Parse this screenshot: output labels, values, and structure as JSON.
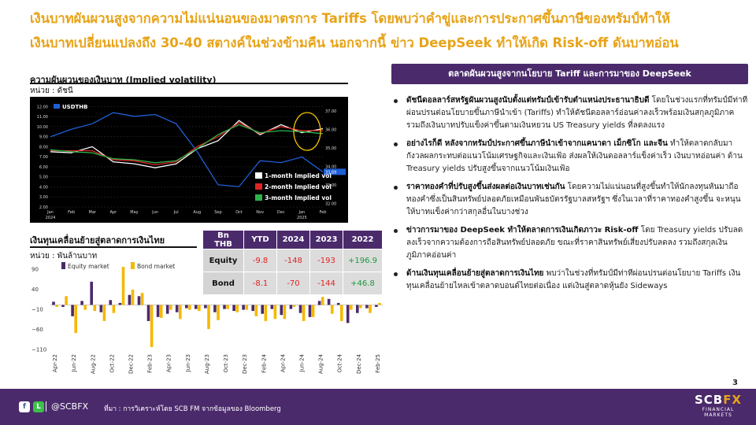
{
  "headline": {
    "line1": "เงินบาทผันผวนสูงจากความไม่แน่นอนของมาตรการ Tariffs โดยพบว่าคำขู่และการประกาศขึ้นภาษีของทรัมป์ทำให้",
    "line2": "เงินบาทเปลี่ยนแปลงถึง 30-40 สตางค์ในช่วงข้ามคืน นอกจากนี้ ข่าว DeepSeek ทำให้เกิด Risk-off ดันบาทอ่อน"
  },
  "vol_section": {
    "title": "ความผันผวนของเงินบาท (Implied volatility)",
    "unit": "หน่วย : ดัชนี"
  },
  "fx_section": {
    "title": "เงินทุนเคลื่อนย้ายสู่ตลาดการเงินไทย",
    "unit": "หน่วย : พันล้านบาท"
  },
  "chart_data": [
    {
      "type": "line",
      "title": "",
      "x": [
        "Jan 2024",
        "Feb",
        "Mar",
        "Apr",
        "May",
        "Jun",
        "Jul",
        "Aug",
        "Sep",
        "Oct",
        "Nov",
        "Dec",
        "Jan 2025",
        "Feb"
      ],
      "x_tick_labels": [
        "Jan",
        "Feb",
        "Mar",
        "Apr",
        "May",
        "Jun",
        "Jul",
        "Aug",
        "Sep",
        "Oct",
        "Nov",
        "Dec",
        "Jan",
        "Feb"
      ],
      "x_year_labels": [
        "2024",
        "2025"
      ],
      "left_axis": {
        "ticks": [
          "2.00",
          "3.00",
          "4.00",
          "5.00",
          "6.00",
          "7.00",
          "8.00",
          "9.00",
          "10.00",
          "11.00",
          "12.00"
        ],
        "ylim": [
          2,
          12.5
        ]
      },
      "right_axis": {
        "ticks": [
          "32.00",
          "33.00",
          "34.00",
          "35.00",
          "36.00",
          "37.00"
        ],
        "ylim": [
          31.8,
          37.5
        ]
      },
      "series": [
        {
          "name": "USDTHB",
          "axis": "right",
          "color": "#1f5fd6",
          "values": [
            35.6,
            36.0,
            36.3,
            36.9,
            36.7,
            36.8,
            36.3,
            34.8,
            33.0,
            32.9,
            34.3,
            34.2,
            34.5,
            33.7
          ]
        },
        {
          "name": "1-month Implied vol",
          "axis": "left",
          "color": "#ffffff",
          "values": [
            7.5,
            7.4,
            8.0,
            6.5,
            6.3,
            5.9,
            6.3,
            7.8,
            8.6,
            10.6,
            9.2,
            10.2,
            9.4,
            9.8
          ]
        },
        {
          "name": "2-month Implied vol",
          "axis": "left",
          "color": "#e02424",
          "values": [
            7.6,
            7.6,
            7.6,
            6.7,
            6.6,
            6.2,
            6.5,
            8.0,
            9.0,
            10.4,
            9.3,
            10.0,
            9.6,
            9.6
          ]
        },
        {
          "name": "3-month Implied vol",
          "axis": "left",
          "color": "#2db34a",
          "values": [
            7.7,
            7.5,
            7.4,
            6.8,
            6.7,
            6.4,
            6.6,
            7.8,
            9.2,
            10.2,
            9.4,
            9.6,
            9.5,
            9.3
          ]
        }
      ],
      "last_labels": [
        "33.69"
      ],
      "legend": "bottom-right"
    },
    {
      "type": "bar",
      "title": "",
      "categories": [
        "Apr-22",
        "May-22",
        "Jun-22",
        "Jul-22",
        "Aug-22",
        "Sep-22",
        "Oct-22",
        "Nov-22",
        "Dec-22",
        "Jan-23",
        "Feb-23",
        "Mar-23",
        "Apr-23",
        "May-23",
        "Jun-23",
        "Jul-23",
        "Aug-23",
        "Sep-23",
        "Oct-23",
        "Nov-23",
        "Dec-23",
        "Jan-24",
        "Feb-24",
        "Mar-24",
        "Apr-24",
        "May-24",
        "Jun-24",
        "Jul-24",
        "Aug-24",
        "Sep-24",
        "Oct-24",
        "Nov-24",
        "Dec-24",
        "Jan-25",
        "Feb-25"
      ],
      "x_tick_labels": [
        "Apr-22",
        "Jun-22",
        "Aug-22",
        "Oct-22",
        "Dec-22",
        "Feb-23",
        "Apr-23",
        "Jun-23",
        "Aug-23",
        "Oct-23",
        "Dec-23",
        "Feb-24",
        "Apr-24",
        "Jun-24",
        "Aug-24",
        "Oct-24",
        "Dec-24",
        "Feb-25"
      ],
      "y_ticks": [
        90,
        40,
        -10,
        -60,
        -110
      ],
      "ylim": [
        -115,
        105
      ],
      "series": [
        {
          "name": "Equity market",
          "color": "#4b2a6c",
          "values": [
            8,
            -5,
            -28,
            10,
            58,
            -18,
            12,
            5,
            25,
            22,
            -40,
            -30,
            -22,
            -18,
            -8,
            -10,
            -8,
            -18,
            -10,
            -15,
            -12,
            -15,
            -22,
            -10,
            -25,
            -10,
            -20,
            -30,
            10,
            15,
            5,
            -45,
            -20,
            -8,
            -5
          ]
        },
        {
          "name": "Bond market",
          "color": "#f5b800",
          "values": [
            -5,
            22,
            -70,
            -12,
            -15,
            -40,
            -20,
            95,
            38,
            30,
            -105,
            -32,
            -12,
            -35,
            -12,
            -15,
            -60,
            -38,
            -10,
            -18,
            -12,
            -28,
            -40,
            -35,
            -35,
            -5,
            -40,
            -30,
            20,
            -22,
            -40,
            -12,
            -8,
            -20,
            5
          ]
        }
      ],
      "legend": "top-left"
    }
  ],
  "table": {
    "headers": [
      "Bn THB",
      "YTD",
      "2024",
      "2023",
      "2022"
    ],
    "rows": [
      {
        "label": "Equity",
        "values": [
          "-9.8",
          "-148",
          "-193",
          "+196.9"
        ]
      },
      {
        "label": "Bond",
        "values": [
          "-8.1",
          "-70",
          "-144",
          "+46.8"
        ]
      }
    ]
  },
  "panel": {
    "title": "ตลาดผันผวนสูงจากนโยบาย Tariff และการมาของ DeepSeek",
    "bullets": [
      {
        "bold": "ดัชนีดอลลาร์สหรัฐผันผวนสูงนับตั้งแต่ทรัมป์เข้ารับตำแหน่งประธานาธิบดี",
        "text": " โดยในช่วงแรกที่ทรัมป์มีท่าทีผ่อนปรนต่อนโยบายขึ้นภาษีนำเข้า (Tariffs) ทำให้ดัชนีดอลลาร์อ่อนค่าลงเร็วพร้อมเงินสกุลภูมิภาค รวมถึงเงินบาทปรับแข็งค่าขึ้นตามเงินหยวน US Treasury yields ที่ลดลงแรง"
      },
      {
        "bold": "อย่างไรก็ดี หลังจากทรัมป์ประกาศขึ้นภาษีนำเข้าจากแคนาดา เม็กซิโก และจีน",
        "text": " ทำให้ตลาดกลับมากังวลผลกระทบต่อแนวโน้มเศรษฐกิจและเงินเฟ้อ ส่งผลให้เงินดอลลาร์แข็งค่าเร็ว เงินบาทอ่อนค่า ด้าน Treasury yields ปรับสูงขึ้นจากแนวโน้มเงินเฟ้อ"
      },
      {
        "bold": "ราคาทองคำที่ปรับสูงขึ้นส่งผลต่อเงินบาทเช่นกัน",
        "text": " โดยความไม่แน่นอนที่สูงขึ้นทำให้นักลงทุนหันมาถือทองคำซึ่งเป็นสินทรัพย์ปลอดภัยเหมือนพันธบัตรรัฐบาลสหรัฐฯ ซึ่งในเวลาที่ราคาทองคำสูงขึ้น จะหนุนให้บาทแข็งค่ากว่าสกุลอื่นในบางช่วง"
      },
      {
        "bold": "ข่าวการมาของ DeepSeek ทำให้ตลาดการเงินเกิดภาวะ Risk-off",
        "text": " โดย Treasury yields ปรับลดลงเร็วจากความต้องการถือสินทรัพย์ปลอดภัย ขณะที่ราคาสินทรัพย์เสี่ยงปรับลดลง รวมถึงสกุลเงินภูมิภาคอ่อนค่า"
      },
      {
        "bold": "ด้านเงินทุนเคลื่อนย้ายสู่ตลาดการเงินไทย",
        "text": " พบว่าในช่วงที่ทรัมป์มีท่าทีผ่อนปรนต่อนโยบาย Tariffs เงินทุนเคลื่อนย้ายไหลเข้าตลาดบอนด์ไทยต่อเนื่อง แต่เงินสู่ตลาดหุ้นยัง Sideways"
      }
    ]
  },
  "page_number": "3",
  "footer": {
    "handle": "@SCBFX",
    "source": "ที่มา : การวิเคราะห์โดย SCB FM จากข้อมูลของ Bloomberg",
    "logo_main": "SCB",
    "logo_accent": "FX",
    "logo_sub1": "FINANCIAL",
    "logo_sub2": "MARKETS",
    "social_fb": "f",
    "social_line": "L"
  },
  "colors": {
    "brand_purple": "#4b2a6c",
    "accent_gold": "#e8a317"
  }
}
